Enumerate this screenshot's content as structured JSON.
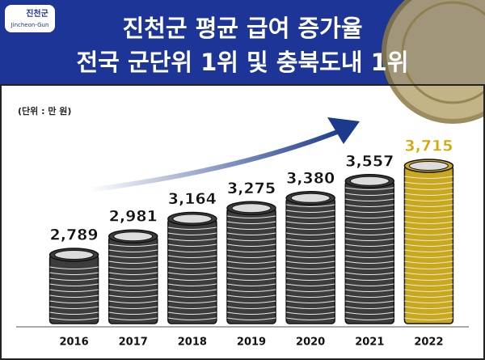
{
  "logo": {
    "name": "진천군",
    "romanized": "Jincheon-Gun"
  },
  "chart_data": {
    "type": "bar",
    "title_lines": [
      "진천군 평균 급여 증가율",
      "전국 군단위 1위 및 충북도내 1위"
    ],
    "unit_note": "(단위 : 만 원)",
    "categories": [
      "2016",
      "2017",
      "2018",
      "2019",
      "2020",
      "2021",
      "2022"
    ],
    "values": [
      2789,
      2981,
      3164,
      3275,
      3380,
      3557,
      3715
    ],
    "value_labels": [
      "2,789",
      "2,981",
      "3,164",
      "3,275",
      "3,380",
      "3,557",
      "3,715"
    ],
    "colors": [
      "#3c3c3c",
      "#3c3c3c",
      "#3c3c3c",
      "#3c3c3c",
      "#3c3c3c",
      "#3c3c3c",
      "#c9a81a"
    ],
    "label_colors": [
      "#111111",
      "#111111",
      "#111111",
      "#111111",
      "#111111",
      "#111111",
      "#d8a400"
    ]
  }
}
